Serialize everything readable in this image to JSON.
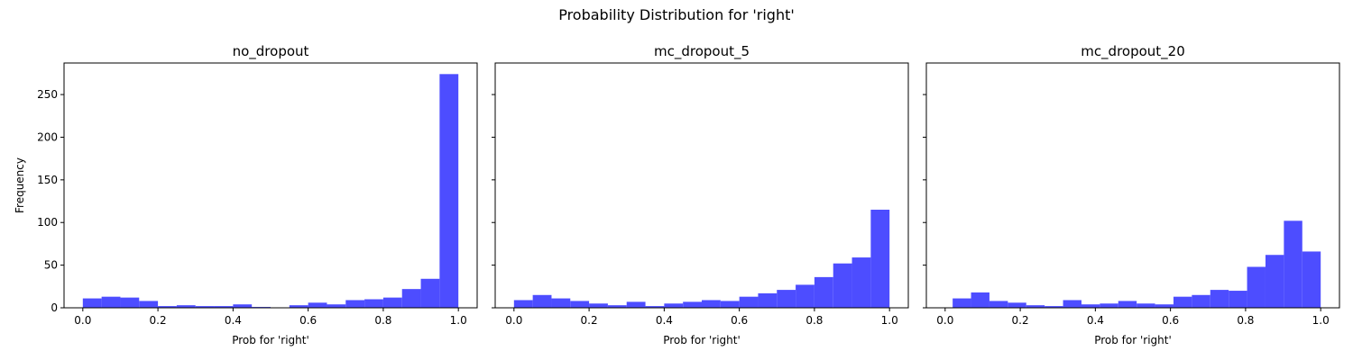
{
  "figure": {
    "suptitle": "Probability Distribution for 'right'",
    "bar_color": "#4d4dff",
    "shared_ylabel": "Frequency"
  },
  "chart_data": [
    {
      "type": "bar",
      "title": "no_dropout",
      "xlabel": "Prob for 'right'",
      "ylabel": "Frequency",
      "xlim": [
        -0.05,
        1.05
      ],
      "ylim": [
        0,
        287
      ],
      "xticks": [
        0.0,
        0.2,
        0.4,
        0.6,
        0.8,
        1.0
      ],
      "xtick_labels": [
        "0.0",
        "0.2",
        "0.4",
        "0.6",
        "0.8",
        "1.0"
      ],
      "yticks": [
        0,
        50,
        100,
        150,
        200,
        250
      ],
      "ytick_labels": [
        "0",
        "50",
        "100",
        "150",
        "200",
        "250"
      ],
      "bin_edges": [
        0.0,
        0.05,
        0.1,
        0.15,
        0.2,
        0.25,
        0.3,
        0.35,
        0.4,
        0.45,
        0.5,
        0.55,
        0.6,
        0.65,
        0.7,
        0.75,
        0.8,
        0.85,
        0.9,
        0.95,
        1.0
      ],
      "values": [
        11,
        13,
        12,
        8,
        2,
        3,
        2,
        2,
        4,
        1,
        0,
        3,
        6,
        4,
        9,
        10,
        12,
        22,
        34,
        274
      ]
    },
    {
      "type": "bar",
      "title": "mc_dropout_5",
      "xlabel": "Prob for 'right'",
      "xlim": [
        -0.05,
        1.05
      ],
      "ylim": [
        0,
        287
      ],
      "xticks": [
        0.0,
        0.2,
        0.4,
        0.6,
        0.8,
        1.0
      ],
      "xtick_labels": [
        "0.0",
        "0.2",
        "0.4",
        "0.6",
        "0.8",
        "1.0"
      ],
      "yticks": [
        0,
        50,
        100,
        150,
        200,
        250
      ],
      "bin_edges": [
        0.0,
        0.05,
        0.1,
        0.15,
        0.2,
        0.25,
        0.3,
        0.35,
        0.4,
        0.45,
        0.5,
        0.55,
        0.6,
        0.65,
        0.7,
        0.75,
        0.8,
        0.85,
        0.9,
        0.95,
        1.0
      ],
      "values": [
        9,
        15,
        11,
        8,
        5,
        3,
        7,
        2,
        5,
        7,
        9,
        8,
        13,
        17,
        21,
        27,
        36,
        52,
        59,
        115
      ]
    },
    {
      "type": "bar",
      "title": "mc_dropout_20",
      "xlabel": "Prob for 'right'",
      "xlim": [
        -0.05,
        1.05
      ],
      "ylim": [
        0,
        287
      ],
      "xticks": [
        0.0,
        0.2,
        0.4,
        0.6,
        0.8,
        1.0
      ],
      "xtick_labels": [
        "0.0",
        "0.2",
        "0.4",
        "0.6",
        "0.8",
        "1.0"
      ],
      "yticks": [
        0,
        50,
        100,
        150,
        200,
        250
      ],
      "bin_edges": [
        0.02,
        0.069,
        0.118,
        0.167,
        0.216,
        0.265,
        0.314,
        0.363,
        0.412,
        0.461,
        0.51,
        0.559,
        0.608,
        0.657,
        0.706,
        0.755,
        0.804,
        0.853,
        0.902,
        0.951,
        1.0
      ],
      "values": [
        11,
        18,
        8,
        6,
        3,
        2,
        9,
        4,
        5,
        8,
        5,
        4,
        13,
        15,
        21,
        20,
        48,
        62,
        102,
        66
      ]
    }
  ]
}
